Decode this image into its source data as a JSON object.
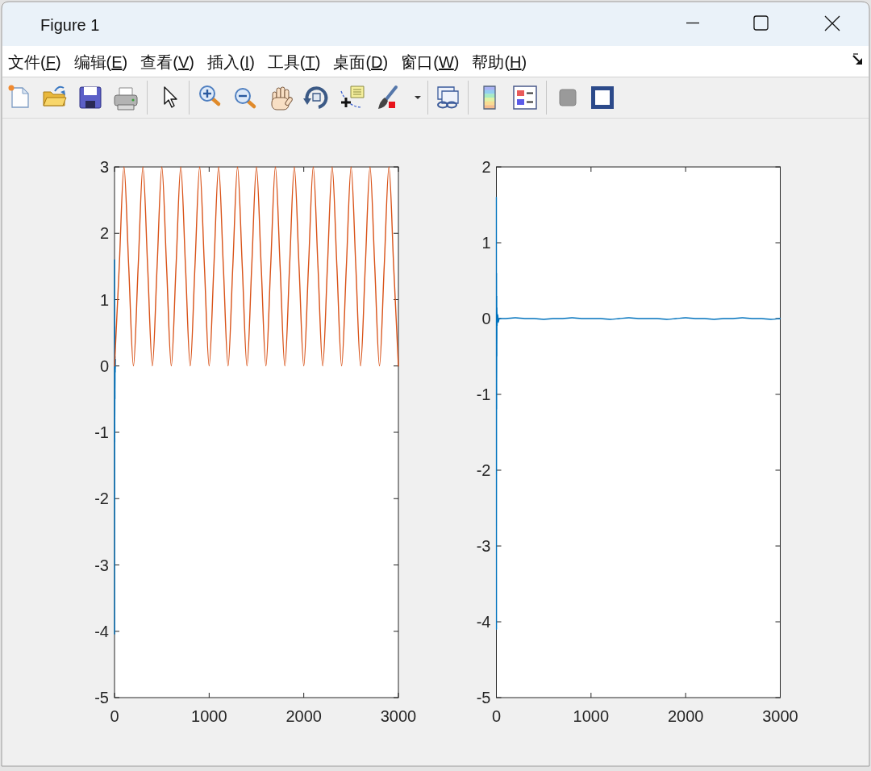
{
  "chart_data": [
    {
      "type": "other",
      "title": "Figure 1",
      "annotations": [
        "文件(F)",
        "编辑(E)",
        "查看(V)",
        "插入(I)",
        "工具(T)",
        "桌面(D)",
        "窗口(W)",
        "帮助(H)"
      ]
    },
    {
      "type": "line",
      "xlim": [
        0,
        3000
      ],
      "ylim": [
        -5,
        3
      ],
      "xticks": [
        0,
        1000,
        2000,
        3000
      ],
      "yticks": [
        -5,
        -4,
        -3,
        -2,
        -1,
        0,
        1,
        2,
        3
      ],
      "series": [
        {
          "color": "#0072bd",
          "x": [
            0,
            1,
            2,
            3,
            4,
            5,
            6,
            8,
            10
          ],
          "values": [
            1.6,
            -4.05,
            0.6,
            -1.15,
            0.3,
            -0.5,
            0.15,
            -0.1,
            0.1
          ]
        },
        {
          "color": "#d95319",
          "x": [
            0,
            50,
            100,
            150,
            200,
            250,
            300,
            350,
            400,
            450,
            500,
            550,
            600,
            650,
            700,
            750,
            800,
            850,
            900,
            950,
            1000,
            1050,
            1100,
            1150,
            1200,
            1250,
            1300,
            1350,
            1400,
            1450,
            1500,
            1550,
            1600,
            1650,
            1700,
            1750,
            1800,
            1850,
            1900,
            1950,
            2000,
            2050,
            2100,
            2150,
            2200,
            2250,
            2300,
            2350,
            2400,
            2450,
            2500,
            2550,
            2600,
            2650,
            2700,
            2750,
            2800,
            2850,
            2900,
            2950,
            3000
          ],
          "values": [
            0,
            1.5,
            3,
            1.5,
            0,
            1.5,
            3,
            1.5,
            0,
            1.5,
            3,
            1.5,
            0,
            1.5,
            3,
            1.5,
            0,
            1.5,
            3,
            1.5,
            0,
            1.5,
            3,
            1.5,
            0,
            1.5,
            3,
            1.5,
            0,
            1.5,
            3,
            1.5,
            0,
            1.5,
            3,
            1.5,
            0,
            1.5,
            3,
            1.5,
            0,
            1.5,
            3,
            1.5,
            0,
            1.5,
            3,
            1.5,
            0,
            1.5,
            3,
            1.5,
            0,
            1.5,
            3,
            1.5,
            0,
            1.5,
            3,
            1.5,
            0
          ]
        }
      ]
    },
    {
      "type": "line",
      "xlim": [
        0,
        3000
      ],
      "ylim": [
        -5,
        2
      ],
      "xticks": [
        0,
        1000,
        2000,
        3000
      ],
      "yticks": [
        -5,
        -4,
        -3,
        -2,
        -1,
        0,
        1,
        2
      ],
      "series": [
        {
          "color": "#0072bd",
          "x": [
            0,
            1,
            2,
            3,
            4,
            5,
            6,
            8,
            10,
            15,
            20,
            30,
            100,
            200,
            300,
            400,
            500,
            600,
            700,
            800,
            900,
            1000,
            1100,
            1200,
            1300,
            1400,
            1500,
            1600,
            1700,
            1800,
            1900,
            2000,
            2100,
            2200,
            2300,
            2400,
            2500,
            2600,
            2700,
            2800,
            2900,
            3000
          ],
          "values": [
            1.6,
            -4.1,
            0.6,
            -1.2,
            0.3,
            -0.5,
            0.15,
            -0.1,
            0.05,
            0.05,
            -0.05,
            0,
            0,
            0.01,
            0,
            0,
            -0.01,
            0,
            0,
            0.01,
            0,
            0,
            0,
            -0.01,
            0,
            0.01,
            0,
            0,
            0,
            -0.01,
            0,
            0.01,
            0,
            0,
            -0.01,
            0,
            0,
            0.01,
            0,
            0,
            -0.01,
            0
          ]
        }
      ]
    }
  ]
}
